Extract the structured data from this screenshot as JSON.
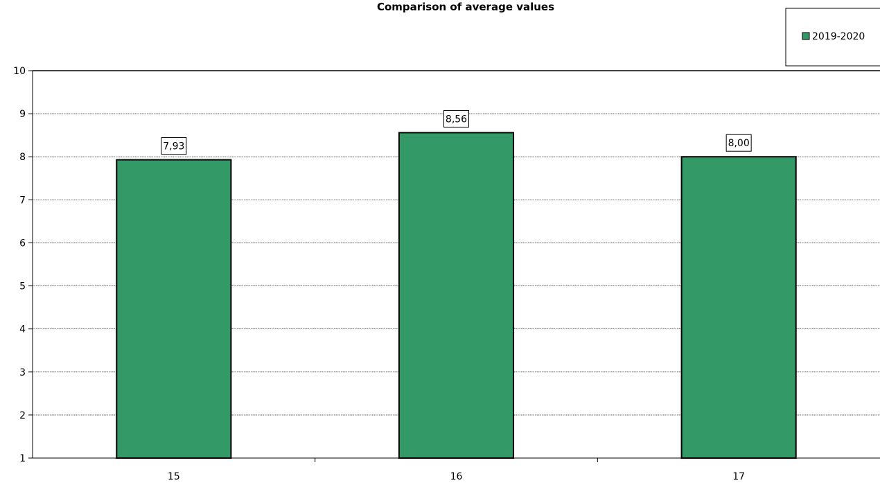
{
  "chart_data": {
    "type": "bar",
    "title": "Comparison of average values",
    "categories": [
      "15",
      "16",
      "17"
    ],
    "series": [
      {
        "name": "2019-2020",
        "values": [
          7.93,
          8.56,
          8.0
        ],
        "labels": [
          "7,93",
          "8,56",
          "8,00"
        ],
        "color": "#339966"
      }
    ],
    "ylim": [
      1,
      10
    ],
    "yticks": [
      "1",
      "2",
      "3",
      "4",
      "5",
      "6",
      "7",
      "8",
      "9",
      "10"
    ],
    "grid": true,
    "legend_position": "top-right"
  }
}
